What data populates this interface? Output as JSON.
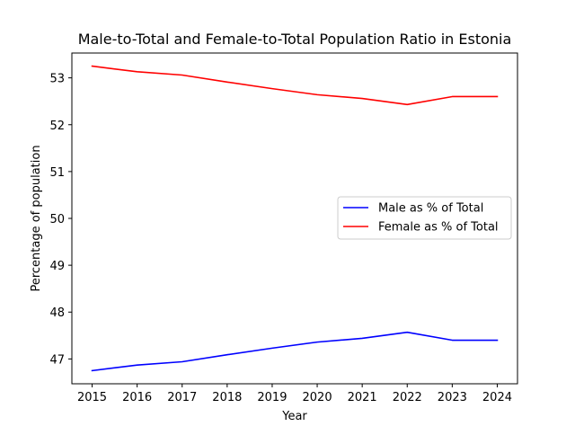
{
  "chart_data": {
    "type": "line",
    "title": "Male-to-Total and Female-to-Total Population Ratio in Estonia",
    "xlabel": "Year",
    "ylabel": "Percentage of population",
    "x": [
      2015,
      2016,
      2017,
      2018,
      2019,
      2020,
      2021,
      2022,
      2023,
      2024
    ],
    "xticks": [
      "2015",
      "2016",
      "2017",
      "2018",
      "2019",
      "2020",
      "2021",
      "2022",
      "2023",
      "2024"
    ],
    "yticks": [
      "47",
      "48",
      "49",
      "50",
      "51",
      "52",
      "53"
    ],
    "xlim": [
      2014.55,
      2024.45
    ],
    "ylim": [
      46.47,
      53.53
    ],
    "grid": false,
    "legend_position": "center-right",
    "series": [
      {
        "name": "Male as % of Total",
        "color": "#0000ff",
        "values": [
          46.75,
          46.87,
          46.94,
          47.09,
          47.23,
          47.36,
          47.44,
          47.57,
          47.4,
          47.4
        ]
      },
      {
        "name": "Female as % of Total",
        "color": "#ff0000",
        "values": [
          53.25,
          53.13,
          53.06,
          52.91,
          52.77,
          52.64,
          52.56,
          52.43,
          52.6,
          52.6
        ]
      }
    ]
  }
}
